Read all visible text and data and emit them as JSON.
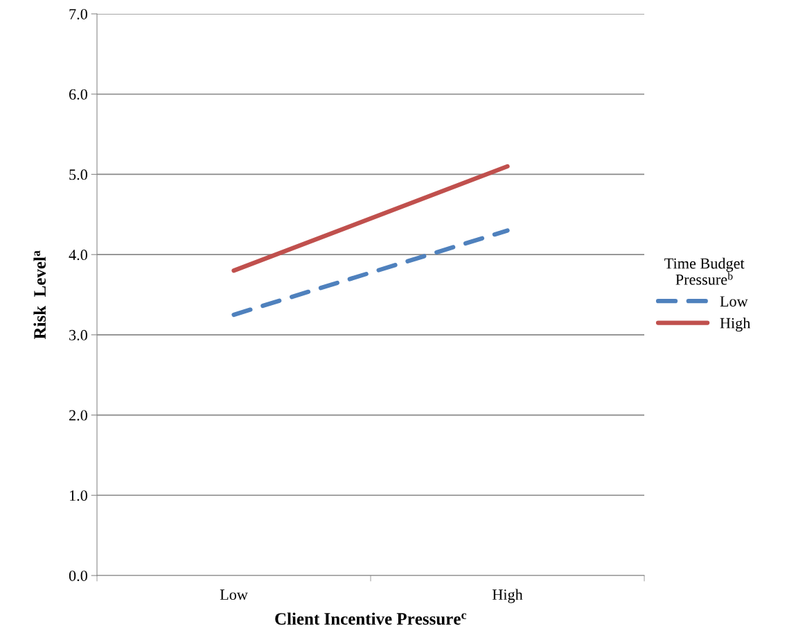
{
  "chart_data": {
    "type": "line",
    "xlabel": "Client Incentive Pressure$^{c}$",
    "ylabel": "Risk  Level$^{a}$",
    "legend_title": "Time Budget\nPressure$^{b}$",
    "categories": [
      "Low",
      "High"
    ],
    "series": [
      {
        "name": "Low",
        "color": "#4f81bd",
        "values": [
          3.25,
          4.3
        ],
        "line_style": "dashed"
      },
      {
        "name": "High",
        "color": "#c0504d",
        "values": [
          3.8,
          5.1
        ],
        "line_style": "solid"
      }
    ],
    "ylim": [
      0,
      7
    ],
    "yticks": [
      {
        "value": 0,
        "label": "0.0"
      },
      {
        "value": 1,
        "label": "1.0"
      },
      {
        "value": 2,
        "label": "2.0"
      },
      {
        "value": 3,
        "label": "3.0"
      },
      {
        "value": 4,
        "label": "4.0"
      },
      {
        "value": 5,
        "label": "5.0"
      },
      {
        "value": 6,
        "label": "6.0"
      },
      {
        "value": 7,
        "label": "7.0"
      }
    ],
    "grid": "y",
    "legend": "right",
    "marker": "none"
  }
}
